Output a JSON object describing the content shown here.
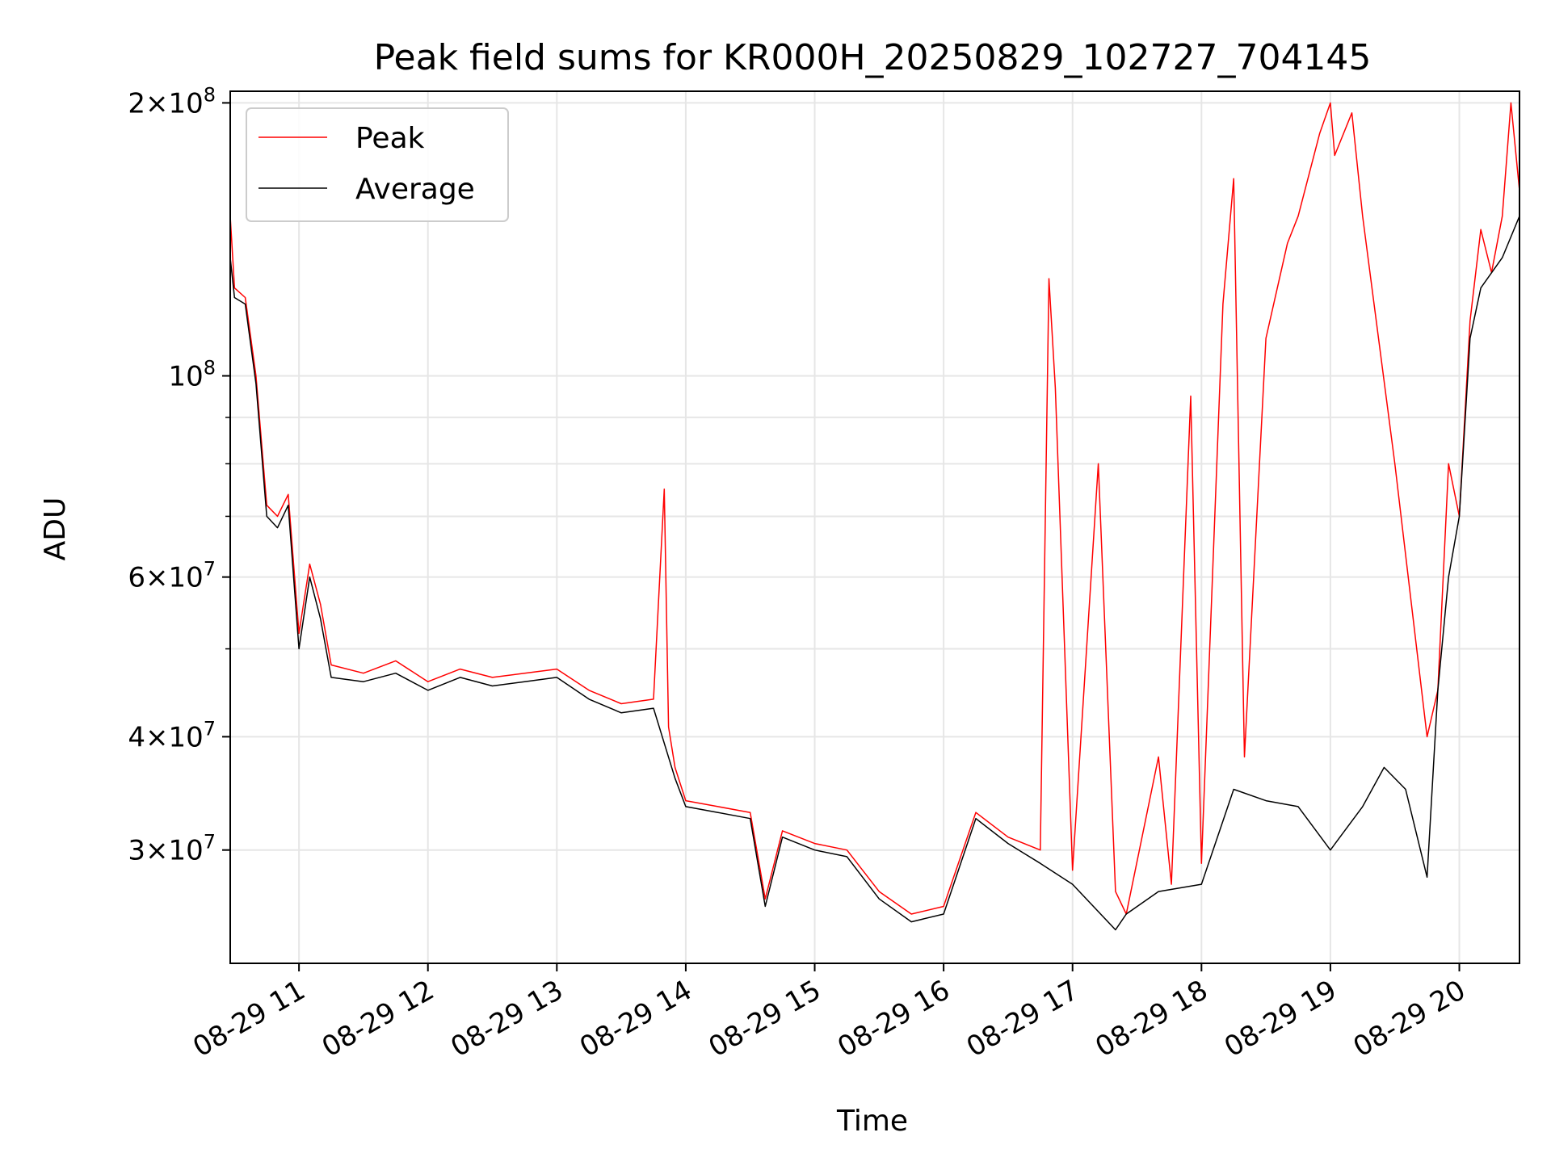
{
  "chart_data": {
    "type": "line",
    "title": "Peak field sums for KR000H_20250829_102727_704145",
    "xlabel": "Time",
    "ylabel": "ADU",
    "yscale": "log",
    "ylim": [
      22500000,
      206000000
    ],
    "xlim": [
      "2025-08-29 10:28",
      "2025-08-29 20:28"
    ],
    "grid": true,
    "legend_position": "top-left",
    "x_ticks": [
      {
        "value": "2025-08-29 11:00",
        "label": "08-29 11"
      },
      {
        "value": "2025-08-29 12:00",
        "label": "08-29 12"
      },
      {
        "value": "2025-08-29 13:00",
        "label": "08-29 13"
      },
      {
        "value": "2025-08-29 14:00",
        "label": "08-29 14"
      },
      {
        "value": "2025-08-29 15:00",
        "label": "08-29 15"
      },
      {
        "value": "2025-08-29 16:00",
        "label": "08-29 16"
      },
      {
        "value": "2025-08-29 17:00",
        "label": "08-29 17"
      },
      {
        "value": "2025-08-29 18:00",
        "label": "08-29 18"
      },
      {
        "value": "2025-08-29 19:00",
        "label": "08-29 19"
      },
      {
        "value": "2025-08-29 20:00",
        "label": "08-29 20"
      }
    ],
    "y_ticks": [
      {
        "value": 30000000,
        "mantissa": "3",
        "exponent": "7"
      },
      {
        "value": 40000000,
        "mantissa": "4",
        "exponent": "7"
      },
      {
        "value": 60000000,
        "mantissa": "6",
        "exponent": "7"
      },
      {
        "value": 100000000,
        "mantissa": "",
        "exponent": "8"
      },
      {
        "value": 200000000,
        "mantissa": "2",
        "exponent": "8"
      }
    ],
    "y_minor_ticks": [
      50000000,
      70000000,
      80000000,
      90000000
    ],
    "series": [
      {
        "name": "Peak",
        "color": "#ff0000",
        "x": [
          "2025-08-29 10:28",
          "2025-08-29 10:30",
          "2025-08-29 10:35",
          "2025-08-29 10:40",
          "2025-08-29 10:45",
          "2025-08-29 10:50",
          "2025-08-29 10:55",
          "2025-08-29 11:00",
          "2025-08-29 11:05",
          "2025-08-29 11:10",
          "2025-08-29 11:15",
          "2025-08-29 11:30",
          "2025-08-29 11:45",
          "2025-08-29 12:00",
          "2025-08-29 12:15",
          "2025-08-29 12:30",
          "2025-08-29 12:45",
          "2025-08-29 13:00",
          "2025-08-29 13:15",
          "2025-08-29 13:30",
          "2025-08-29 13:45",
          "2025-08-29 13:50",
          "2025-08-29 13:52",
          "2025-08-29 13:55",
          "2025-08-29 14:00",
          "2025-08-29 14:15",
          "2025-08-29 14:30",
          "2025-08-29 14:37",
          "2025-08-29 14:45",
          "2025-08-29 15:00",
          "2025-08-29 15:15",
          "2025-08-29 15:30",
          "2025-08-29 15:45",
          "2025-08-29 16:00",
          "2025-08-29 16:15",
          "2025-08-29 16:30",
          "2025-08-29 16:45",
          "2025-08-29 16:49",
          "2025-08-29 16:52",
          "2025-08-29 17:00",
          "2025-08-29 17:12",
          "2025-08-29 17:20",
          "2025-08-29 17:25",
          "2025-08-29 17:40",
          "2025-08-29 17:46",
          "2025-08-29 17:55",
          "2025-08-29 18:00",
          "2025-08-29 18:10",
          "2025-08-29 18:15",
          "2025-08-29 18:20",
          "2025-08-29 18:30",
          "2025-08-29 18:40",
          "2025-08-29 18:45",
          "2025-08-29 18:55",
          "2025-08-29 19:00",
          "2025-08-29 19:02",
          "2025-08-29 19:10",
          "2025-08-29 19:15",
          "2025-08-29 19:30",
          "2025-08-29 19:45",
          "2025-08-29 19:50",
          "2025-08-29 19:55",
          "2025-08-29 20:00",
          "2025-08-29 20:05",
          "2025-08-29 20:10",
          "2025-08-29 20:15",
          "2025-08-29 20:20",
          "2025-08-29 20:24",
          "2025-08-29 20:28"
        ],
        "values": [
          150000000,
          125000000,
          122000000,
          100000000,
          72000000,
          70000000,
          74000000,
          52000000,
          62000000,
          56000000,
          48000000,
          47000000,
          48500000,
          46000000,
          47500000,
          46500000,
          47000000,
          47500000,
          45000000,
          43500000,
          44000000,
          75000000,
          41000000,
          37000000,
          34000000,
          33500000,
          33000000,
          26500000,
          31500000,
          30500000,
          30000000,
          27000000,
          25500000,
          26000000,
          33000000,
          31000000,
          30000000,
          128000000,
          97000000,
          28500000,
          80000000,
          27000000,
          25500000,
          38000000,
          27500000,
          95000000,
          29000000,
          120000000,
          165000000,
          38000000,
          110000000,
          140000000,
          150000000,
          185000000,
          200000000,
          175000000,
          195000000,
          150000000,
          80000000,
          40000000,
          45000000,
          80000000,
          70000000,
          115000000,
          145000000,
          130000000,
          150000000,
          200000000,
          160000000
        ]
      },
      {
        "name": "Average",
        "color": "#000000",
        "x": [
          "2025-08-29 10:28",
          "2025-08-29 10:30",
          "2025-08-29 10:35",
          "2025-08-29 10:40",
          "2025-08-29 10:45",
          "2025-08-29 10:50",
          "2025-08-29 10:55",
          "2025-08-29 11:00",
          "2025-08-29 11:05",
          "2025-08-29 11:10",
          "2025-08-29 11:15",
          "2025-08-29 11:30",
          "2025-08-29 11:45",
          "2025-08-29 12:00",
          "2025-08-29 12:15",
          "2025-08-29 12:30",
          "2025-08-29 12:45",
          "2025-08-29 13:00",
          "2025-08-29 13:15",
          "2025-08-29 13:30",
          "2025-08-29 13:45",
          "2025-08-29 13:55",
          "2025-08-29 14:00",
          "2025-08-29 14:15",
          "2025-08-29 14:30",
          "2025-08-29 14:37",
          "2025-08-29 14:45",
          "2025-08-29 15:00",
          "2025-08-29 15:15",
          "2025-08-29 15:30",
          "2025-08-29 15:45",
          "2025-08-29 16:00",
          "2025-08-29 16:15",
          "2025-08-29 16:30",
          "2025-08-29 16:45",
          "2025-08-29 17:00",
          "2025-08-29 17:20",
          "2025-08-29 17:25",
          "2025-08-29 17:40",
          "2025-08-29 18:00",
          "2025-08-29 18:15",
          "2025-08-29 18:30",
          "2025-08-29 18:45",
          "2025-08-29 19:00",
          "2025-08-29 19:15",
          "2025-08-29 19:25",
          "2025-08-29 19:35",
          "2025-08-29 19:45",
          "2025-08-29 19:50",
          "2025-08-29 19:55",
          "2025-08-29 20:00",
          "2025-08-29 20:05",
          "2025-08-29 20:10",
          "2025-08-29 20:20",
          "2025-08-29 20:28"
        ],
        "values": [
          135000000,
          122000000,
          120000000,
          98000000,
          70000000,
          68000000,
          72000000,
          50000000,
          60000000,
          54000000,
          46500000,
          46000000,
          47000000,
          45000000,
          46500000,
          45500000,
          46000000,
          46500000,
          44000000,
          42500000,
          43000000,
          36000000,
          33500000,
          33000000,
          32500000,
          26000000,
          31000000,
          30000000,
          29500000,
          26500000,
          25000000,
          25500000,
          32500000,
          30500000,
          29000000,
          27500000,
          24500000,
          25500000,
          27000000,
          27500000,
          35000000,
          34000000,
          33500000,
          30000000,
          33500000,
          37000000,
          35000000,
          28000000,
          45000000,
          60000000,
          70000000,
          110000000,
          125000000,
          135000000,
          150000000
        ]
      }
    ]
  }
}
